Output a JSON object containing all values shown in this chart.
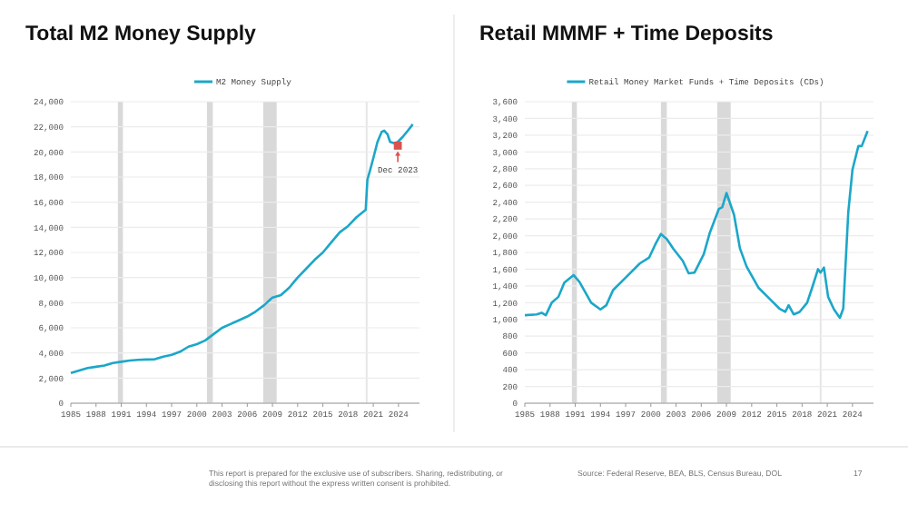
{
  "chart_data": [
    {
      "type": "line",
      "title": "Total M2 Money Supply",
      "x": [
        1985,
        1986,
        1987,
        1988,
        1989,
        1990,
        1991,
        1992,
        1993,
        1994,
        1995,
        1996,
        1997,
        1998,
        1999,
        2000,
        2001,
        2002,
        2003,
        2004,
        2005,
        2006,
        2007,
        2008,
        2008.8,
        2009,
        2010,
        2011,
        2011.5,
        2012,
        2013,
        2014,
        2015,
        2016,
        2017,
        2018,
        2019,
        2020.1,
        2020.3,
        2020.6,
        2021,
        2021.5,
        2022,
        2022.3,
        2022.7,
        2023,
        2023.5,
        2023.92,
        2024.5,
        2025,
        2025.7
      ],
      "series": [
        {
          "name": "M2 Money Supply",
          "color": "#1ba7c9",
          "values": [
            2400,
            2600,
            2800,
            2900,
            3000,
            3200,
            3300,
            3400,
            3450,
            3480,
            3500,
            3700,
            3850,
            4100,
            4500,
            4700,
            5000,
            5500,
            6000,
            6300,
            6600,
            6900,
            7300,
            7800,
            8300,
            8400,
            8600,
            9200,
            9600,
            10000,
            10700,
            11400,
            12000,
            12800,
            13600,
            14100,
            14800,
            15400,
            17800,
            18500,
            19500,
            20800,
            21600,
            21700,
            21400,
            20800,
            20700,
            20800,
            21200,
            21600,
            22200
          ]
        },
        {
          "type": "scatter",
          "color": "#d9534f",
          "x": [
            2023.92
          ],
          "values": [
            20500
          ],
          "marker": "square"
        }
      ],
      "annotations": [
        {
          "text": "Dec 2023",
          "x": 2023.92,
          "y": 20500
        },
        "This report is prepared for the exclusive use of subscribers. Sharing, redistributing, or disclosing this report without the express written consent is prohibited."
      ],
      "bands": [
        {
          "axis": "x",
          "from": 1990.6,
          "to": 1991.2,
          "color": "#d9d9d9"
        },
        {
          "axis": "x",
          "from": 2001.2,
          "to": 2001.9,
          "color": "#d9d9d9"
        },
        {
          "axis": "x",
          "from": 2007.9,
          "to": 2009.5,
          "color": "#d9d9d9"
        },
        {
          "axis": "x",
          "from": 2020.1,
          "to": 2020.3,
          "color": "#e6e6e6"
        }
      ],
      "xlim": [
        1985,
        2026.5
      ],
      "xticks": [
        1985,
        1988,
        1991,
        1994,
        1997,
        2000,
        2003,
        2006,
        2009,
        2012,
        2015,
        2018,
        2021,
        2024
      ],
      "ylim": [
        0,
        24000
      ],
      "yticks": [
        0,
        {
          "value": 2000,
          "label": "2,000"
        },
        {
          "value": 4000,
          "label": "4,000"
        },
        {
          "value": 6000,
          "label": "6,000"
        },
        {
          "value": 8000,
          "label": "8,000"
        },
        {
          "value": 10000,
          "label": "10,000"
        },
        {
          "value": 12000,
          "label": "12,000"
        },
        {
          "value": 14000,
          "label": "14,000"
        },
        {
          "value": 16000,
          "label": "16,000"
        },
        {
          "value": 18000,
          "label": "18,000"
        },
        {
          "value": 20000,
          "label": "20,000"
        },
        {
          "value": 22000,
          "label": "22,000"
        },
        {
          "value": 24000,
          "label": "24,000"
        }
      ],
      "grid": "y",
      "legend": "top",
      "marker": "none",
      "line_style": "solid"
    },
    {
      "type": "line",
      "title": "Retail MMMF + Time Deposits",
      "x": [
        1985,
        1986.4,
        1987,
        1987.5,
        1988.2,
        1989,
        1989.7,
        1990.8,
        1991.5,
        1992.9,
        1994,
        1994.7,
        1995.5,
        1996.9,
        1998.7,
        1999.8,
        2000.5,
        2001.2,
        2001.9,
        2002.7,
        2003.8,
        2004.5,
        2005.2,
        2006.3,
        2007,
        2008.1,
        2008.5,
        2009,
        2009.9,
        2010.6,
        2011.4,
        2012.8,
        2014.2,
        2015.3,
        2016,
        2016.4,
        2017,
        2017.7,
        2018.6,
        2019.2,
        2019.9,
        2020.2,
        2020.6,
        2021.1,
        2021.8,
        2022.5,
        2022.9,
        2023.5,
        2024,
        2024.7,
        2025.1,
        2025.8
      ],
      "series": [
        {
          "name": "Retail Money Market Funds + Time Deposits (CDs)",
          "color": "#1ba7c9",
          "values": [
            1050,
            1060,
            1080,
            1050,
            1200,
            1270,
            1440,
            1530,
            1450,
            1200,
            1120,
            1170,
            1350,
            1490,
            1670,
            1740,
            1890,
            2020,
            1960,
            1840,
            1700,
            1550,
            1560,
            1780,
            2030,
            2320,
            2340,
            2510,
            2250,
            1850,
            1630,
            1380,
            1240,
            1130,
            1090,
            1170,
            1060,
            1090,
            1200,
            1380,
            1600,
            1560,
            1620,
            1270,
            1120,
            1020,
            1130,
            2280,
            2790,
            3070,
            3070,
            3250
          ]
        }
      ],
      "annotations": [
        "Source: Federal Reserve, BEA, BLS, Census Bureau, DOL",
        "17"
      ],
      "bands": [
        {
          "axis": "x",
          "from": 1990.6,
          "to": 1991.2,
          "color": "#d9d9d9"
        },
        {
          "axis": "x",
          "from": 2001.2,
          "to": 2001.9,
          "color": "#d9d9d9"
        },
        {
          "axis": "x",
          "from": 2007.9,
          "to": 2009.5,
          "color": "#d9d9d9"
        },
        {
          "axis": "x",
          "from": 2020.1,
          "to": 2020.3,
          "color": "#e6e6e6"
        }
      ],
      "xlim": [
        1985,
        2026.5
      ],
      "xticks": [
        1985,
        1988,
        1991,
        1994,
        1997,
        2000,
        2003,
        2006,
        2009,
        2012,
        2015,
        2018,
        2021,
        2024
      ],
      "ylim": [
        0,
        3600
      ],
      "yticks": [
        0,
        200,
        400,
        600,
        800,
        {
          "value": 1000,
          "label": "1,000"
        },
        {
          "value": 1200,
          "label": "1,200"
        },
        {
          "value": 1400,
          "label": "1,400"
        },
        {
          "value": 1600,
          "label": "1,600"
        },
        {
          "value": 1800,
          "label": "1,800"
        },
        {
          "value": 2000,
          "label": "2,000"
        },
        {
          "value": 2200,
          "label": "2,200"
        },
        {
          "value": 2400,
          "label": "2,400"
        },
        {
          "value": 2600,
          "label": "2,600"
        },
        {
          "value": 2800,
          "label": "2,800"
        },
        {
          "value": 3000,
          "label": "3,000"
        },
        {
          "value": 3200,
          "label": "3,200"
        },
        {
          "value": 3400,
          "label": "3,400"
        },
        {
          "value": 3600,
          "label": "3,600"
        }
      ],
      "grid": "y",
      "legend": "top",
      "marker": "none",
      "line_style": "solid"
    }
  ]
}
